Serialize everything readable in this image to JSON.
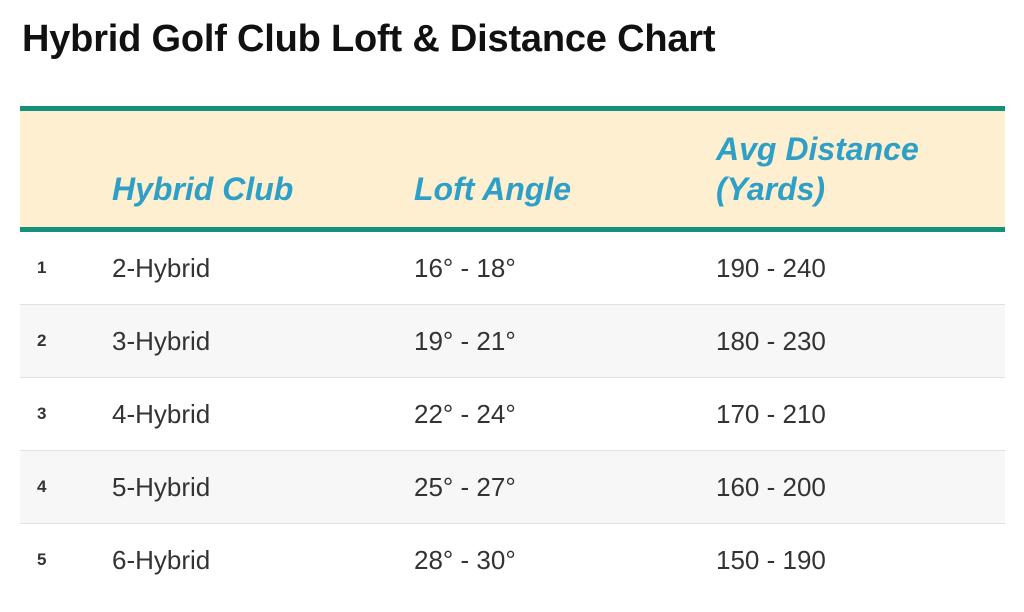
{
  "title": "Hybrid Golf Club Loft & Distance Chart",
  "table": {
    "headers": {
      "club": "Hybrid Club",
      "loft": "Loft Angle",
      "distance": "Avg Distance (Yards)"
    },
    "rows": [
      {
        "index": "1",
        "club": "2-Hybrid",
        "loft": "16° - 18°",
        "distance": "190 - 240"
      },
      {
        "index": "2",
        "club": "3-Hybrid",
        "loft": "19° - 21°",
        "distance": "180 - 230"
      },
      {
        "index": "3",
        "club": "4-Hybrid",
        "loft": "22° - 24°",
        "distance": "170 - 210"
      },
      {
        "index": "4",
        "club": "5-Hybrid",
        "loft": "25° - 27°",
        "distance": "160 - 200"
      },
      {
        "index": "5",
        "club": "6-Hybrid",
        "loft": "28° - 30°",
        "distance": "150 - 190"
      }
    ]
  },
  "colors": {
    "header_background": "#fdefcf",
    "header_text": "#2e9fc7",
    "rule": "#13917a",
    "alt_row": "#f7f7f7"
  }
}
